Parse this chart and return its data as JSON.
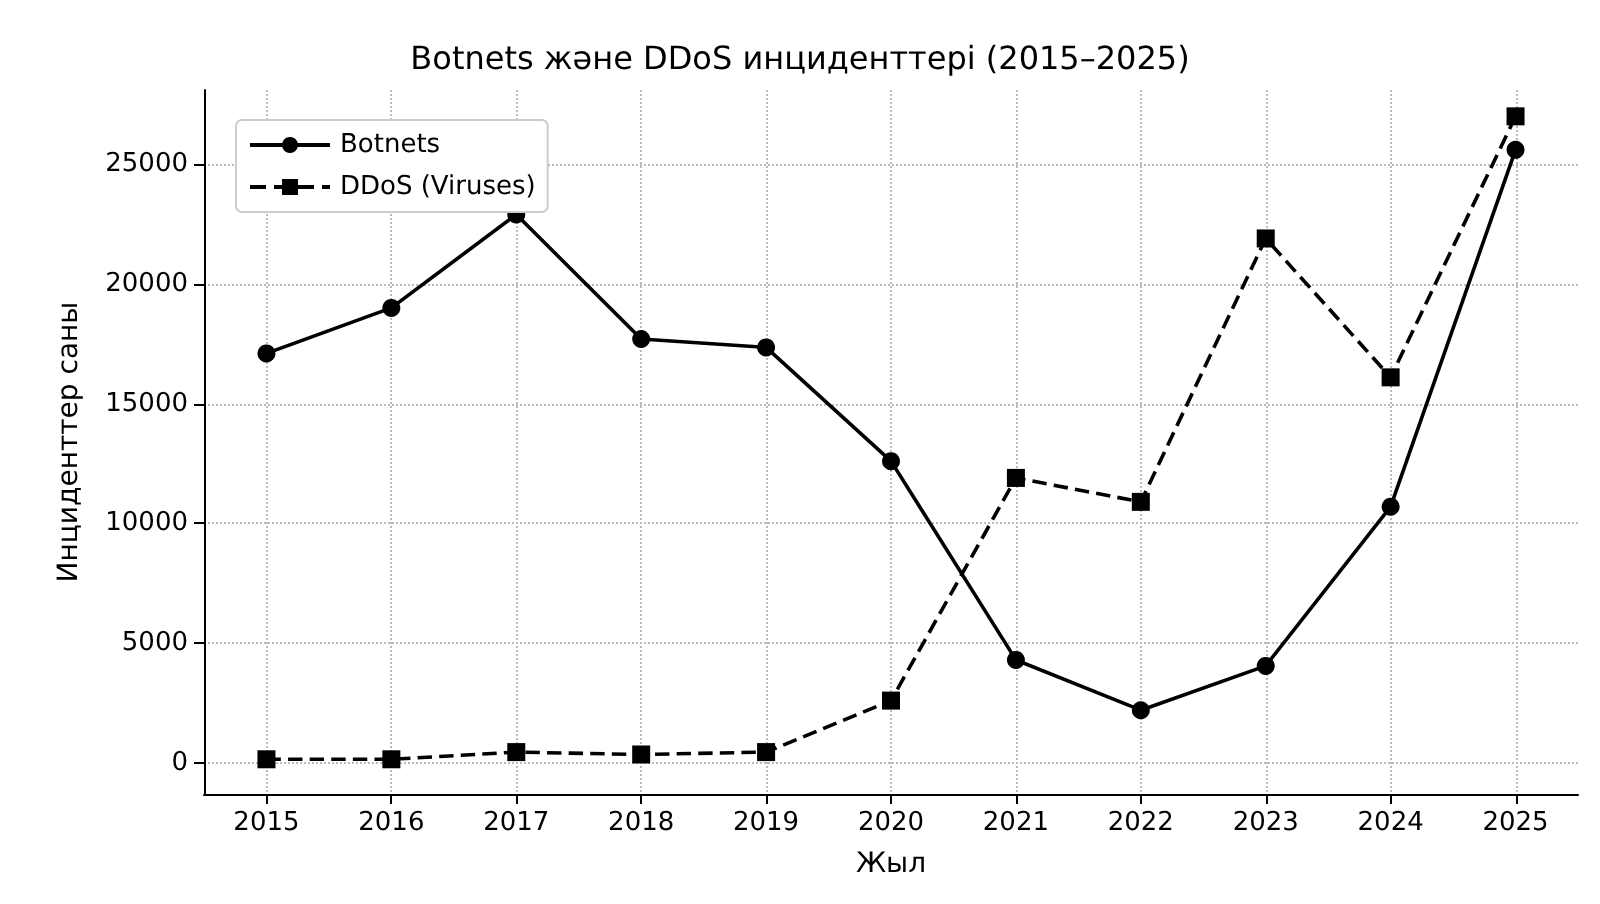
{
  "chart_data": {
    "type": "line",
    "title": "Botnets және DDoS инциденттері (2015–2025)",
    "xlabel": "Жыл",
    "ylabel": "Инциденттер саны",
    "x": [
      2015,
      2016,
      2017,
      2018,
      2019,
      2020,
      2021,
      2022,
      2023,
      2024,
      2025
    ],
    "series": [
      {
        "name": "Botnets",
        "color": "#000000",
        "marker": "circle",
        "line_style": "solid",
        "values": [
          17100,
          19000,
          22900,
          17700,
          17350,
          12600,
          4300,
          2200,
          4050,
          10700,
          25600
        ]
      },
      {
        "name": "DDoS (Viruses)",
        "color": "#000000",
        "marker": "square",
        "line_style": "dashed",
        "values": [
          150,
          150,
          450,
          350,
          450,
          2600,
          11900,
          10900,
          21900,
          16100,
          27000
        ]
      }
    ],
    "xlim": [
      2014.5,
      2025.5
    ],
    "xticks": [
      2015,
      2016,
      2017,
      2018,
      2019,
      2020,
      2021,
      2022,
      2023,
      2024,
      2025
    ],
    "ylim": [
      -1300,
      28100
    ],
    "yticks": [
      0,
      5000,
      10000,
      15000,
      20000,
      25000
    ],
    "grid": true,
    "legend": "top left"
  }
}
